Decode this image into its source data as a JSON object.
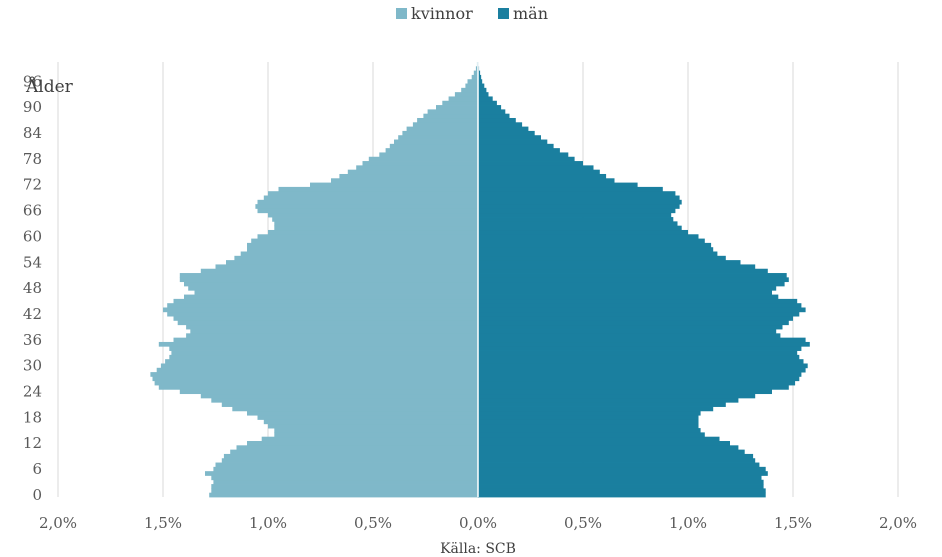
{
  "chart_data": {
    "type": "bar",
    "orientation": "horizontal",
    "ylabel": "Ålder",
    "source_note": "Källa: SCB",
    "legend_position": "top",
    "xlim": [
      -2.0,
      2.0
    ],
    "x_ticks": [
      -2.0,
      -1.5,
      -1.0,
      -0.5,
      0.0,
      0.5,
      1.0,
      1.5,
      2.0
    ],
    "x_tick_labels": [
      "2,0%",
      "1,5%",
      "1,0%",
      "0,5%",
      "0,0%",
      "0,5%",
      "1,0%",
      "1,5%",
      "2,0%"
    ],
    "y_ticks": [
      0,
      6,
      12,
      18,
      24,
      30,
      36,
      42,
      48,
      54,
      60,
      66,
      72,
      78,
      84,
      90,
      96
    ],
    "y_tick_labels": [
      "0",
      "6",
      "12",
      "18",
      "24",
      "30",
      "36",
      "42",
      "48",
      "54",
      "60",
      "66",
      "72",
      "78",
      "84",
      "90",
      "96"
    ],
    "grid": "vertical",
    "ages": [
      0,
      1,
      2,
      3,
      4,
      5,
      6,
      7,
      8,
      9,
      10,
      11,
      12,
      13,
      14,
      15,
      16,
      17,
      18,
      19,
      20,
      21,
      22,
      23,
      24,
      25,
      26,
      27,
      28,
      29,
      30,
      31,
      32,
      33,
      34,
      35,
      36,
      37,
      38,
      39,
      40,
      41,
      42,
      43,
      44,
      45,
      46,
      47,
      48,
      49,
      50,
      51,
      52,
      53,
      54,
      55,
      56,
      57,
      58,
      59,
      60,
      61,
      62,
      63,
      64,
      65,
      66,
      67,
      68,
      69,
      70,
      71,
      72,
      73,
      74,
      75,
      76,
      77,
      78,
      79,
      80,
      81,
      82,
      83,
      84,
      85,
      86,
      87,
      88,
      89,
      90,
      91,
      92,
      93,
      94,
      95,
      96,
      97,
      98,
      99,
      100
    ],
    "series": [
      {
        "name": "kvinnor",
        "color": "#7FB8C9",
        "values": [
          1.28,
          1.27,
          1.27,
          1.26,
          1.27,
          1.3,
          1.26,
          1.25,
          1.22,
          1.21,
          1.18,
          1.15,
          1.1,
          1.03,
          0.97,
          0.97,
          1.0,
          1.02,
          1.05,
          1.1,
          1.17,
          1.22,
          1.27,
          1.32,
          1.42,
          1.52,
          1.54,
          1.55,
          1.56,
          1.53,
          1.51,
          1.49,
          1.47,
          1.46,
          1.47,
          1.52,
          1.45,
          1.39,
          1.37,
          1.39,
          1.43,
          1.45,
          1.48,
          1.5,
          1.48,
          1.45,
          1.4,
          1.35,
          1.38,
          1.4,
          1.42,
          1.42,
          1.32,
          1.25,
          1.2,
          1.16,
          1.13,
          1.1,
          1.1,
          1.08,
          1.05,
          1.0,
          0.97,
          0.97,
          0.98,
          1.0,
          1.05,
          1.06,
          1.05,
          1.02,
          1.0,
          0.95,
          0.8,
          0.7,
          0.66,
          0.62,
          0.58,
          0.55,
          0.52,
          0.47,
          0.44,
          0.42,
          0.4,
          0.38,
          0.36,
          0.34,
          0.31,
          0.29,
          0.26,
          0.24,
          0.2,
          0.17,
          0.14,
          0.11,
          0.08,
          0.06,
          0.05,
          0.03,
          0.02,
          0.01,
          0.005
        ]
      },
      {
        "name": "män",
        "color": "#1A7F9F",
        "values": [
          1.37,
          1.37,
          1.36,
          1.36,
          1.35,
          1.38,
          1.37,
          1.34,
          1.32,
          1.31,
          1.27,
          1.24,
          1.2,
          1.15,
          1.08,
          1.06,
          1.05,
          1.05,
          1.05,
          1.06,
          1.12,
          1.18,
          1.24,
          1.32,
          1.4,
          1.48,
          1.51,
          1.53,
          1.54,
          1.56,
          1.57,
          1.55,
          1.53,
          1.52,
          1.54,
          1.58,
          1.56,
          1.44,
          1.42,
          1.45,
          1.48,
          1.5,
          1.53,
          1.56,
          1.54,
          1.52,
          1.43,
          1.4,
          1.42,
          1.46,
          1.48,
          1.47,
          1.38,
          1.32,
          1.25,
          1.18,
          1.14,
          1.12,
          1.11,
          1.08,
          1.05,
          1.0,
          0.97,
          0.95,
          0.93,
          0.92,
          0.94,
          0.96,
          0.97,
          0.96,
          0.94,
          0.88,
          0.76,
          0.65,
          0.61,
          0.58,
          0.55,
          0.5,
          0.46,
          0.43,
          0.39,
          0.36,
          0.33,
          0.3,
          0.27,
          0.24,
          0.21,
          0.18,
          0.15,
          0.13,
          0.11,
          0.09,
          0.07,
          0.05,
          0.04,
          0.03,
          0.02,
          0.015,
          0.01,
          0.005,
          0.003
        ]
      }
    ]
  }
}
